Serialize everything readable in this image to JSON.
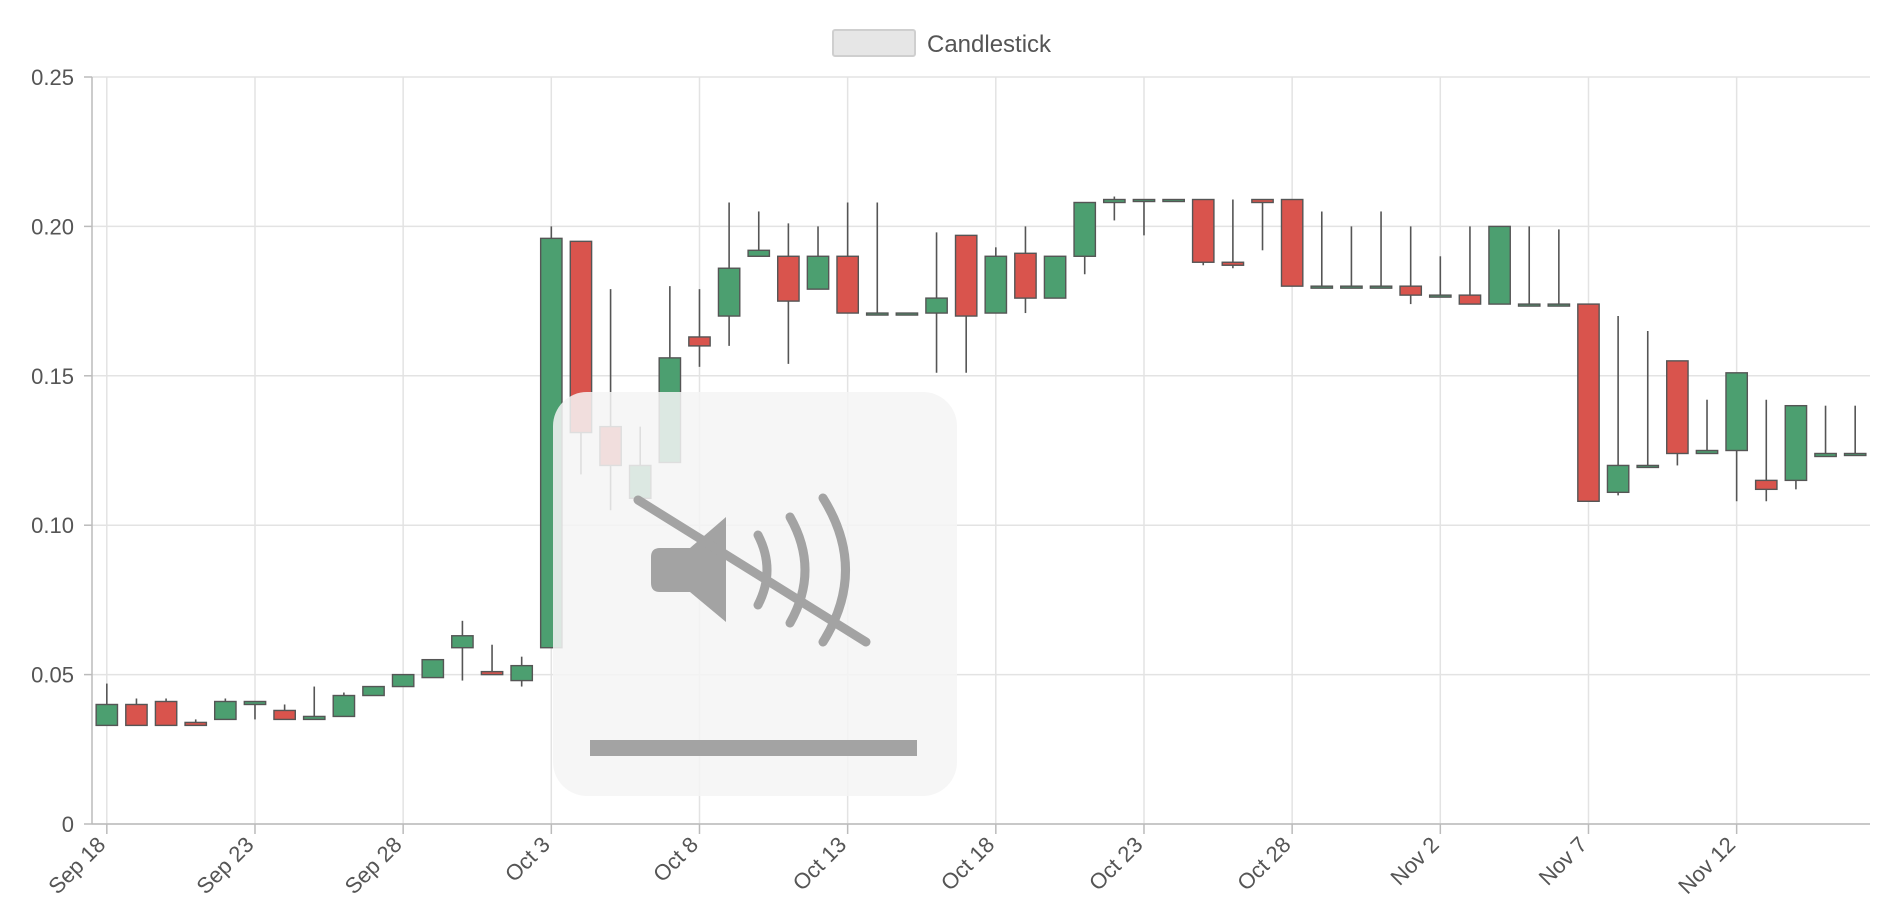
{
  "chart_data": {
    "type": "candlestick",
    "legend": [
      {
        "label": "Candlestick",
        "placement": "top-center"
      }
    ],
    "ylim": [
      0,
      0.25
    ],
    "y_ticks": [
      "0",
      "0.05",
      "0.10",
      "0.15",
      "0.20",
      "0.25"
    ],
    "y_tick_values": [
      0,
      0.05,
      0.1,
      0.15,
      0.2,
      0.25
    ],
    "x_ticks": [
      "Sep 18",
      "Sep 23",
      "Sep 28",
      "Oct 3",
      "Oct 8",
      "Oct 13",
      "Oct 18",
      "Oct 23",
      "Oct 28",
      "Nov 2",
      "Nov 7",
      "Nov 12"
    ],
    "x_range": [
      "Sep 18",
      "Nov 16"
    ],
    "grid": true,
    "colors": {
      "up": "#4c9f70",
      "down": "#d9544d",
      "wick": "#555555",
      "grid": "#e3e3e3"
    },
    "candles": [
      {
        "date": "Sep 18",
        "open": 0.033,
        "high": 0.047,
        "low": 0.033,
        "close": 0.04
      },
      {
        "date": "Sep 19",
        "open": 0.04,
        "high": 0.042,
        "low": 0.033,
        "close": 0.033
      },
      {
        "date": "Sep 20",
        "open": 0.041,
        "high": 0.042,
        "low": 0.033,
        "close": 0.033
      },
      {
        "date": "Sep 21",
        "open": 0.034,
        "high": 0.035,
        "low": 0.033,
        "close": 0.033
      },
      {
        "date": "Sep 22",
        "open": 0.035,
        "high": 0.042,
        "low": 0.035,
        "close": 0.041
      },
      {
        "date": "Sep 23",
        "open": 0.04,
        "high": 0.041,
        "low": 0.035,
        "close": 0.041
      },
      {
        "date": "Sep 24",
        "open": 0.038,
        "high": 0.04,
        "low": 0.035,
        "close": 0.035
      },
      {
        "date": "Sep 25",
        "open": 0.035,
        "high": 0.046,
        "low": 0.035,
        "close": 0.036
      },
      {
        "date": "Sep 26",
        "open": 0.036,
        "high": 0.044,
        "low": 0.036,
        "close": 0.043
      },
      {
        "date": "Sep 27",
        "open": 0.043,
        "high": 0.046,
        "low": 0.043,
        "close": 0.046
      },
      {
        "date": "Sep 28",
        "open": 0.046,
        "high": 0.05,
        "low": 0.046,
        "close": 0.05
      },
      {
        "date": "Sep 29",
        "open": 0.049,
        "high": 0.055,
        "low": 0.049,
        "close": 0.055
      },
      {
        "date": "Sep 30",
        "open": 0.059,
        "high": 0.068,
        "low": 0.048,
        "close": 0.063
      },
      {
        "date": "Oct 1",
        "open": 0.051,
        "high": 0.06,
        "low": 0.05,
        "close": 0.05
      },
      {
        "date": "Oct 2",
        "open": 0.048,
        "high": 0.056,
        "low": 0.046,
        "close": 0.053
      },
      {
        "date": "Oct 3",
        "open": 0.059,
        "high": 0.2,
        "low": 0.059,
        "close": 0.196
      },
      {
        "date": "Oct 4",
        "open": 0.195,
        "high": 0.195,
        "low": 0.117,
        "close": 0.131
      },
      {
        "date": "Oct 5",
        "open": 0.133,
        "high": 0.179,
        "low": 0.105,
        "close": 0.12
      },
      {
        "date": "Oct 6",
        "open": 0.109,
        "high": 0.133,
        "low": 0.109,
        "close": 0.12
      },
      {
        "date": "Oct 7",
        "open": 0.121,
        "high": 0.18,
        "low": 0.121,
        "close": 0.156
      },
      {
        "date": "Oct 8",
        "open": 0.163,
        "high": 0.179,
        "low": 0.153,
        "close": 0.16
      },
      {
        "date": "Oct 9",
        "open": 0.17,
        "high": 0.208,
        "low": 0.16,
        "close": 0.186
      },
      {
        "date": "Oct 10",
        "open": 0.19,
        "high": 0.205,
        "low": 0.19,
        "close": 0.192
      },
      {
        "date": "Oct 11",
        "open": 0.19,
        "high": 0.201,
        "low": 0.154,
        "close": 0.175
      },
      {
        "date": "Oct 12",
        "open": 0.179,
        "high": 0.2,
        "low": 0.179,
        "close": 0.19
      },
      {
        "date": "Oct 13",
        "open": 0.19,
        "high": 0.208,
        "low": 0.171,
        "close": 0.171
      },
      {
        "date": "Oct 14",
        "open": 0.171,
        "high": 0.208,
        "low": 0.171,
        "close": 0.171
      },
      {
        "date": "Oct 15",
        "open": 0.171,
        "high": 0.171,
        "low": 0.171,
        "close": 0.171
      },
      {
        "date": "Oct 16",
        "open": 0.171,
        "high": 0.198,
        "low": 0.151,
        "close": 0.176
      },
      {
        "date": "Oct 17",
        "open": 0.197,
        "high": 0.197,
        "low": 0.151,
        "close": 0.17
      },
      {
        "date": "Oct 18",
        "open": 0.171,
        "high": 0.193,
        "low": 0.171,
        "close": 0.19
      },
      {
        "date": "Oct 19",
        "open": 0.191,
        "high": 0.2,
        "low": 0.171,
        "close": 0.176
      },
      {
        "date": "Oct 20",
        "open": 0.176,
        "high": 0.19,
        "low": 0.176,
        "close": 0.19
      },
      {
        "date": "Oct 21",
        "open": 0.19,
        "high": 0.208,
        "low": 0.184,
        "close": 0.208
      },
      {
        "date": "Oct 22",
        "open": 0.208,
        "high": 0.21,
        "low": 0.202,
        "close": 0.209
      },
      {
        "date": "Oct 23",
        "open": 0.209,
        "high": 0.209,
        "low": 0.197,
        "close": 0.209
      },
      {
        "date": "Oct 24",
        "open": 0.209,
        "high": 0.209,
        "low": 0.209,
        "close": 0.209
      },
      {
        "date": "Oct 25",
        "open": 0.209,
        "high": 0.209,
        "low": 0.187,
        "close": 0.188
      },
      {
        "date": "Oct 26",
        "open": 0.188,
        "high": 0.209,
        "low": 0.186,
        "close": 0.187
      },
      {
        "date": "Oct 27",
        "open": 0.209,
        "high": 0.209,
        "low": 0.192,
        "close": 0.208
      },
      {
        "date": "Oct 28",
        "open": 0.209,
        "high": 0.209,
        "low": 0.18,
        "close": 0.18
      },
      {
        "date": "Oct 29",
        "open": 0.18,
        "high": 0.205,
        "low": 0.18,
        "close": 0.18
      },
      {
        "date": "Oct 30",
        "open": 0.18,
        "high": 0.2,
        "low": 0.18,
        "close": 0.18
      },
      {
        "date": "Oct 31",
        "open": 0.18,
        "high": 0.205,
        "low": 0.18,
        "close": 0.18
      },
      {
        "date": "Nov 1",
        "open": 0.18,
        "high": 0.2,
        "low": 0.174,
        "close": 0.177
      },
      {
        "date": "Nov 2",
        "open": 0.177,
        "high": 0.19,
        "low": 0.177,
        "close": 0.177
      },
      {
        "date": "Nov 3",
        "open": 0.177,
        "high": 0.2,
        "low": 0.174,
        "close": 0.174
      },
      {
        "date": "Nov 4",
        "open": 0.174,
        "high": 0.2,
        "low": 0.174,
        "close": 0.2
      },
      {
        "date": "Nov 5",
        "open": 0.174,
        "high": 0.2,
        "low": 0.174,
        "close": 0.174
      },
      {
        "date": "Nov 6",
        "open": 0.174,
        "high": 0.199,
        "low": 0.174,
        "close": 0.174
      },
      {
        "date": "Nov 7",
        "open": 0.174,
        "high": 0.174,
        "low": 0.108,
        "close": 0.108
      },
      {
        "date": "Nov 8",
        "open": 0.111,
        "high": 0.17,
        "low": 0.11,
        "close": 0.12
      },
      {
        "date": "Nov 9",
        "open": 0.12,
        "high": 0.165,
        "low": 0.12,
        "close": 0.12
      },
      {
        "date": "Nov 10",
        "open": 0.155,
        "high": 0.155,
        "low": 0.12,
        "close": 0.124
      },
      {
        "date": "Nov 11",
        "open": 0.124,
        "high": 0.142,
        "low": 0.124,
        "close": 0.125
      },
      {
        "date": "Nov 12",
        "open": 0.125,
        "high": 0.151,
        "low": 0.108,
        "close": 0.151
      },
      {
        "date": "Nov 13",
        "open": 0.115,
        "high": 0.142,
        "low": 0.108,
        "close": 0.112
      },
      {
        "date": "Nov 14",
        "open": 0.115,
        "high": 0.14,
        "low": 0.112,
        "close": 0.14
      },
      {
        "date": "Nov 15",
        "open": 0.123,
        "high": 0.14,
        "low": 0.123,
        "close": 0.124
      },
      {
        "date": "Nov 16",
        "open": 0.124,
        "high": 0.14,
        "low": 0.124,
        "close": 0.124
      }
    ]
  },
  "overlay": {
    "kind": "volume-muted-indicator",
    "icon": "speaker-muted-icon",
    "volume_level": 1.0
  }
}
